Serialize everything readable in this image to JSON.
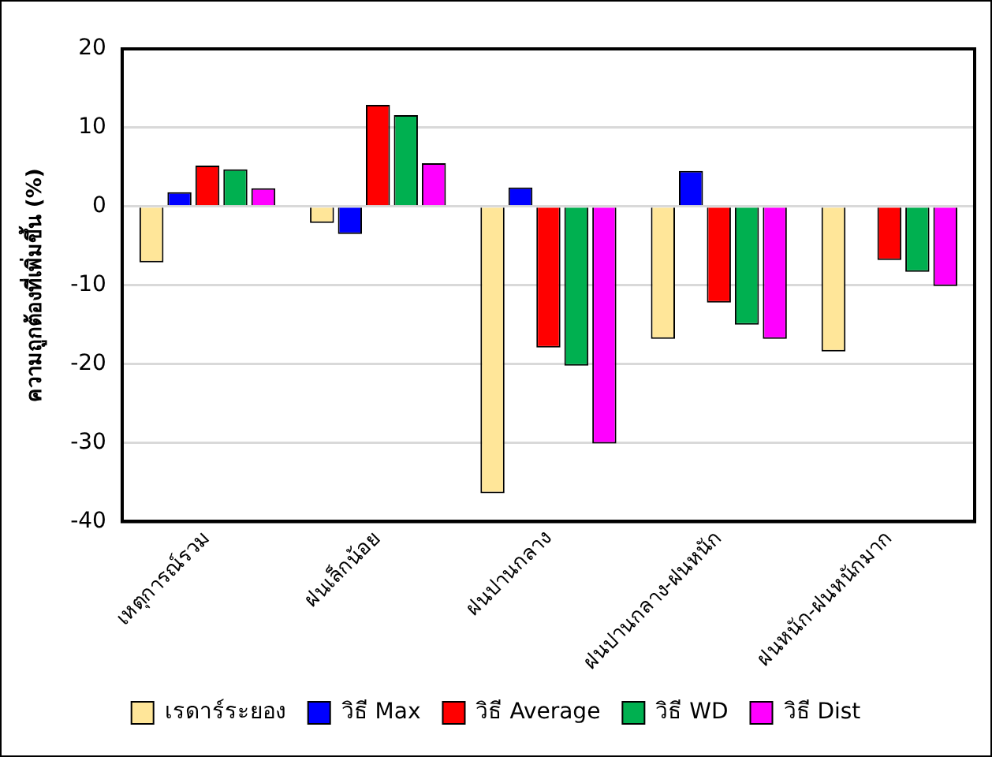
{
  "chart_data": {
    "type": "bar",
    "ylabel": "ความถูกต้องที่เพิ่มขึ้น (%)",
    "categories": [
      "เหตุการณ์รวม",
      "ฝนเล็กน้อย",
      "ฝนปานกลาง",
      "ฝนปานกลาง-ฝนหนัก",
      "ฝนหนัก-ฝนหนักมาก"
    ],
    "series": [
      {
        "name": "เรดาร์ระยอง",
        "color": "#ffe699",
        "values": [
          -7.1,
          -2.1,
          -36.4,
          -16.8,
          -18.4
        ]
      },
      {
        "name": "วิธี Max",
        "color": "#0000ff",
        "values": [
          1.8,
          -3.5,
          2.4,
          4.5,
          null
        ]
      },
      {
        "name": "วิธี Average",
        "color": "#ff0000",
        "values": [
          5.2,
          12.9,
          -17.9,
          -12.2,
          -6.8
        ]
      },
      {
        "name": "วิธี WD",
        "color": "#00b050",
        "values": [
          4.7,
          11.6,
          -20.2,
          -15.0,
          -8.3
        ]
      },
      {
        "name": "วิธี Dist",
        "color": "#ff00ff",
        "values": [
          2.3,
          5.5,
          -30.1,
          -16.8,
          -10.1
        ]
      }
    ],
    "ylim": [
      -40,
      20
    ],
    "yticks": [
      -40,
      -30,
      -20,
      -10,
      0,
      10,
      20
    ],
    "grid": "y",
    "legend": "bottom"
  }
}
